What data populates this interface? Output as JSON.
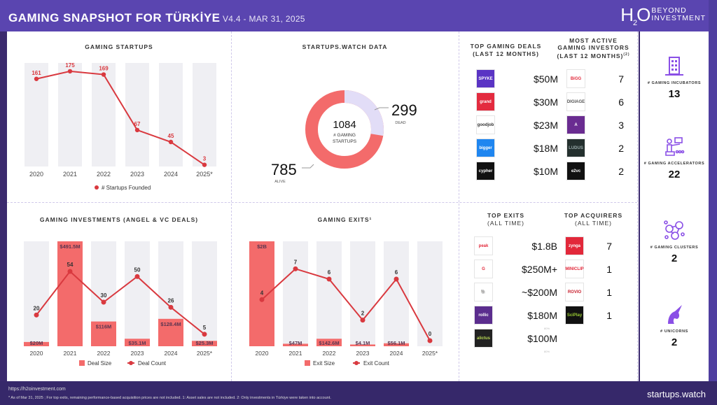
{
  "header": {
    "title": "GAMING SNAPSHOT FOR TÜRKİYE",
    "version": "V4.4 - MAR 31, 2025",
    "logo_h": "H",
    "logo_o": "O",
    "logo_sub": "2",
    "logo_line1": "BEYOND",
    "logo_line2": "INVESTMENT"
  },
  "colors": {
    "brand": "#5a45b0",
    "bar": "#f36b6b",
    "line": "#d9393f",
    "track": "#efeff3",
    "dead": "#e2ddf7"
  },
  "chart_data": [
    {
      "type": "line",
      "title": "GAMING STARTUPS",
      "categories": [
        "2020",
        "2021",
        "2022",
        "2023",
        "2024",
        "2025*"
      ],
      "series": [
        {
          "name": "# Startups Founded",
          "values": [
            161,
            175,
            169,
            67,
            45,
            3
          ]
        }
      ]
    },
    {
      "type": "pie",
      "title": "STARTUPS.WATCH DATA",
      "total": 1084,
      "center_label": "# GAMING STARTUPS",
      "slices": [
        {
          "name": "ALIVE",
          "value": 785
        },
        {
          "name": "DEAD",
          "value": 299
        }
      ]
    },
    {
      "type": "bar",
      "title": "GAMING INVESTMENTS (ANGEL & VC DEALS)",
      "categories": [
        "2020",
        "2021",
        "2022",
        "2023",
        "2024",
        "2025*"
      ],
      "series": [
        {
          "name": "Deal Size",
          "values": [
            20,
            491.5,
            116,
            35.1,
            128.4,
            25.3
          ],
          "labels": [
            "$20M",
            "$491.5M",
            "$116M",
            "$35.1M",
            "$128.4M",
            "$25.3M"
          ]
        },
        {
          "name": "Deal Count",
          "values": [
            20,
            54,
            30,
            50,
            26,
            5
          ]
        }
      ]
    },
    {
      "type": "bar",
      "title": "GAMING EXITS¹",
      "categories": [
        "2020",
        "2021",
        "2022",
        "2023",
        "2024",
        "2025*"
      ],
      "series": [
        {
          "name": "Exit Size",
          "values": [
            2000,
            47,
            142.6,
            4.1,
            56.1,
            0
          ],
          "labels": [
            "$2B",
            "$47M",
            "$142.6M",
            "$4.1M",
            "$56.1M",
            ""
          ]
        },
        {
          "name": "Exit Count",
          "values": [
            4,
            7,
            6,
            2,
            6,
            0
          ]
        }
      ]
    }
  ],
  "deals": {
    "title1": "TOP GAMING DEALS",
    "title2": "(LAST 12 MONTHS)",
    "items": [
      {
        "logo": "SPYKE",
        "bg": "#5a34c4",
        "fg": "#fff",
        "amount": "$50M"
      },
      {
        "logo": "grand",
        "bg": "#e32b3f",
        "fg": "#fff",
        "amount": "$30M"
      },
      {
        "logo": "goodjob",
        "bg": "#fff",
        "fg": "#333",
        "amount": "$23M"
      },
      {
        "logo": "bigger",
        "bg": "#1f86f0",
        "fg": "#fff",
        "amount": "$18M"
      },
      {
        "logo": "cypher",
        "bg": "#111",
        "fg": "#fff",
        "amount": "$10M"
      }
    ]
  },
  "investors": {
    "title1": "MOST ACTIVE",
    "title2": "GAMING INVESTORS",
    "title3": "(LAST 12 MONTHS)",
    "note": "(2)",
    "items": [
      {
        "logo": "BiGG",
        "bg": "#fff",
        "fg": "#e2283a",
        "count": "7"
      },
      {
        "logo": "DIGIAGE",
        "bg": "#fff",
        "fg": "#555",
        "count": "6"
      },
      {
        "logo": "A",
        "bg": "#6a2c91",
        "fg": "#fff",
        "count": "3"
      },
      {
        "logo": "LUDUS",
        "bg": "#24302e",
        "fg": "#9aa",
        "count": "2"
      },
      {
        "logo": "e2vc",
        "bg": "#111",
        "fg": "#fff",
        "count": "2"
      }
    ]
  },
  "exits": {
    "title1": "TOP EXITS",
    "title2": "(ALL TIME)",
    "items": [
      {
        "logo": "peak",
        "bg": "#fff",
        "fg": "#e2283a",
        "amount": "$1.8B",
        "note": ""
      },
      {
        "logo": "G",
        "bg": "#fff",
        "fg": "#e2283a",
        "amount": "$250M+",
        "note": ""
      },
      {
        "logo": "🐘",
        "bg": "#fff",
        "fg": "#e2283a",
        "amount": "~$200M",
        "note": ""
      },
      {
        "logo": "rollic",
        "bg": "#5b2d8e",
        "fg": "#fff",
        "amount": "$180M",
        "note": "80%"
      },
      {
        "logo": "alictus",
        "bg": "#222",
        "fg": "#bada55",
        "amount": "$100M",
        "note": "80%"
      }
    ]
  },
  "acquirers": {
    "title1": "TOP ACQUIRERS",
    "title2": "(ALL TIME)",
    "items": [
      {
        "logo": "zynga",
        "bg": "#e2283a",
        "fg": "#fff",
        "count": "7"
      },
      {
        "logo": "MINICLIP",
        "bg": "#fff",
        "fg": "#e2283a",
        "count": "1"
      },
      {
        "logo": "ROVIO",
        "bg": "#fff",
        "fg": "#c8202e",
        "count": "1"
      },
      {
        "logo": "SciPlay",
        "bg": "#111",
        "fg": "#9c3",
        "count": "1"
      }
    ]
  },
  "stats": [
    {
      "icon": "building-icon",
      "label": "# GAMING INCUBATORS",
      "value": "13"
    },
    {
      "icon": "presenter-icon",
      "label": "# GAMING ACCELERATORS",
      "value": "22"
    },
    {
      "icon": "network-icon",
      "label": "# GAMING CLUSTERS",
      "value": "2"
    },
    {
      "icon": "unicorn-icon",
      "label": "# UNICORNS",
      "value": "2"
    }
  ],
  "footer": {
    "url": "https://h2oinvestment.com",
    "note": "* As of Mar 31, 2025 ; For top exits, remaining performance-based acquisition prices are not included. 1: Asset sales are not included. 2: Only investments in Türkiye were taken into account.",
    "brand": "startups.watch"
  }
}
